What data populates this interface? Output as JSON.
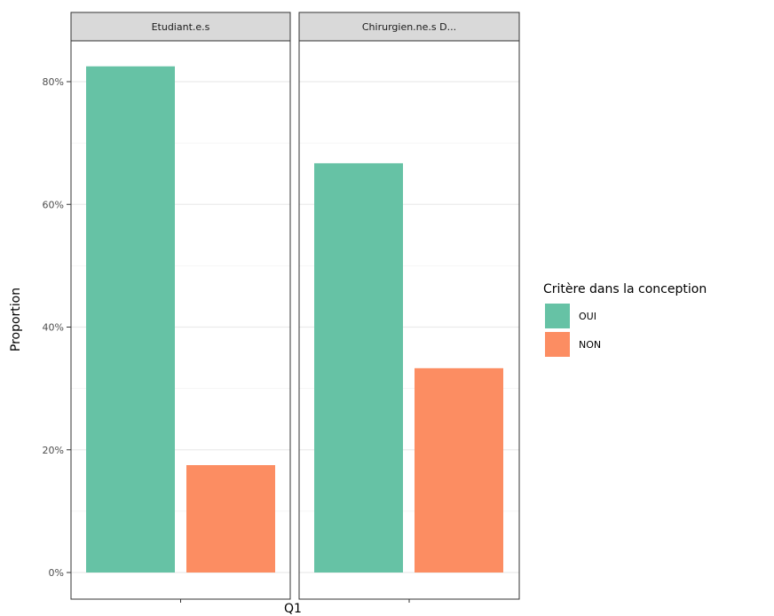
{
  "chart_data": {
    "type": "bar",
    "facets": [
      "Etudiant.e.s",
      "Chirurgien.ne.s D..."
    ],
    "xlabel": "Q1",
    "ylabel": "Proportion",
    "ylim": [
      0,
      0.9
    ],
    "yticks": [
      0,
      0.2,
      0.4,
      0.6,
      0.8
    ],
    "ytick_labels": [
      "0%",
      "20%",
      "40%",
      "60%",
      "80%"
    ],
    "grid": true,
    "legend": {
      "title": "Critère dans la conception",
      "placement": "right",
      "entries": [
        {
          "name": "OUI",
          "color": "#66c2a5"
        },
        {
          "name": "NON",
          "color": "#fc8d62"
        }
      ]
    },
    "series": [
      {
        "name": "OUI",
        "values": [
          0.825,
          0.667
        ]
      },
      {
        "name": "NON",
        "values": [
          0.175,
          0.333
        ]
      }
    ]
  }
}
